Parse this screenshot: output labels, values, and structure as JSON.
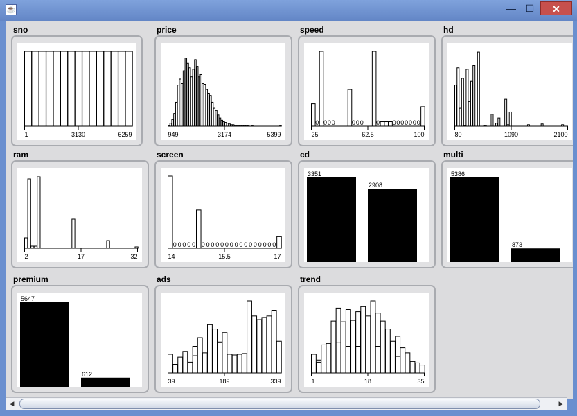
{
  "window": {
    "icon": "java-cup-icon",
    "icon_glyph": "☕",
    "minimize_glyph": "—",
    "maximize_glyph": "☐",
    "close_glyph": "✕"
  },
  "plots": [
    {
      "id": "sno",
      "title": "sno",
      "type": "histogram",
      "ticks": [
        "1",
        "3130",
        "6259"
      ],
      "values": [
        100,
        100,
        100,
        100,
        100,
        100,
        100,
        100,
        100,
        100,
        100,
        100,
        100,
        100,
        100
      ],
      "labels": [],
      "max": 100
    },
    {
      "id": "price",
      "title": "price",
      "type": "histogram",
      "ticks": [
        "949",
        "3174",
        "5399"
      ],
      "values": [
        1,
        4,
        9,
        17,
        32,
        55,
        63,
        57,
        74,
        91,
        84,
        78,
        66,
        76,
        89,
        80,
        66,
        69,
        57,
        56,
        49,
        44,
        41,
        32,
        24,
        21,
        15,
        11,
        8,
        6,
        5,
        4,
        3,
        2,
        2,
        1,
        1,
        1,
        1,
        1,
        1,
        1,
        1,
        0,
        1,
        0,
        0,
        0,
        0,
        0,
        0,
        0,
        0,
        0,
        0,
        0,
        0,
        0,
        0,
        1
      ],
      "labels": [],
      "max": 100
    },
    {
      "id": "speed",
      "title": "speed",
      "type": "histogram",
      "ticks": [
        "25",
        "62.5",
        "100"
      ],
      "values": [
        30,
        0,
        100,
        0,
        0,
        0,
        0,
        0,
        0,
        49,
        0,
        0,
        0,
        0,
        0,
        100,
        0,
        6,
        6,
        6,
        0,
        0,
        0,
        0,
        0,
        0,
        0,
        26
      ],
      "labels": [
        "",
        "0",
        "",
        "0",
        "0",
        "0",
        "",
        "",
        "",
        "",
        "0",
        "0",
        "0",
        "",
        "",
        "",
        "0",
        "",
        "",
        "",
        "0",
        "0",
        "0",
        "0",
        "0",
        "0",
        "0",
        ""
      ],
      "max": 100
    },
    {
      "id": "hd",
      "title": "hd",
      "type": "histogram",
      "ticks": [
        "80",
        "1090",
        "2100"
      ],
      "values": [
        55,
        78,
        24,
        64,
        1,
        76,
        33,
        60,
        81,
        0,
        99,
        0,
        0,
        1,
        0,
        0,
        16,
        0,
        4,
        11,
        0,
        0,
        36,
        2,
        19,
        0,
        0,
        0,
        0,
        0,
        0,
        0,
        2,
        0,
        0,
        0,
        0,
        0,
        3,
        0,
        0,
        0,
        0,
        0,
        0,
        0,
        0,
        2,
        0,
        0
      ],
      "labels": [],
      "max": 100
    },
    {
      "id": "ram",
      "title": "ram",
      "type": "histogram",
      "ticks": [
        "2",
        "17",
        "32"
      ],
      "values": [
        15,
        100,
        3,
        3,
        103,
        0,
        0,
        0,
        0,
        0,
        0,
        0,
        0,
        0,
        0,
        42,
        0,
        0,
        0,
        0,
        0,
        0,
        0,
        0,
        0,
        0,
        11,
        0,
        0,
        0,
        0,
        0,
        0,
        0,
        0,
        2
      ],
      "labels": [],
      "max": 104
    },
    {
      "id": "screen",
      "title": "screen",
      "type": "histogram",
      "ticks": [
        "14",
        "15.5",
        "17"
      ],
      "values": [
        100,
        0,
        0,
        0,
        0,
        0,
        53,
        0,
        0,
        0,
        0,
        0,
        0,
        0,
        0,
        0,
        0,
        0,
        0,
        0,
        0,
        0,
        0,
        16
      ],
      "labels": [
        "",
        "0",
        "0",
        "0",
        "0",
        "0",
        "",
        "0",
        "0",
        "0",
        "0",
        "0",
        "0",
        "0",
        "0",
        "0",
        "0",
        "0",
        "0",
        "0",
        "0",
        "0",
        "0",
        ""
      ],
      "max": 100
    },
    {
      "id": "cd",
      "title": "cd",
      "type": "barchart",
      "categories": [
        "",
        ""
      ],
      "values": [
        3351,
        2908
      ],
      "value_labels": [
        "3351",
        "2908"
      ],
      "max": 3351
    },
    {
      "id": "multi",
      "title": "multi",
      "type": "barchart",
      "categories": [
        "",
        ""
      ],
      "values": [
        5386,
        873
      ],
      "value_labels": [
        "5386",
        "873"
      ],
      "max": 5386
    },
    {
      "id": "premium",
      "title": "premium",
      "type": "barchart",
      "categories": [
        "",
        ""
      ],
      "values": [
        5647,
        612
      ],
      "value_labels": [
        "5647",
        "612"
      ],
      "max": 5647
    },
    {
      "id": "ads",
      "title": "ads",
      "type": "histogram",
      "ticks": [
        "39",
        "189",
        "339"
      ],
      "values": [
        26,
        12,
        22,
        30,
        15,
        37,
        49,
        28,
        67,
        61,
        43,
        56,
        26,
        25,
        26,
        27,
        100,
        79,
        74,
        77,
        79,
        87,
        44
      ],
      "inner": [
        null,
        null,
        null,
        null,
        null,
        24,
        null,
        null,
        null,
        null,
        null,
        null,
        null,
        null,
        null,
        null,
        null,
        null,
        null,
        null,
        null,
        null,
        null
      ],
      "labels": [],
      "max": 100
    },
    {
      "id": "trend",
      "title": "trend",
      "type": "histogram",
      "ticks": [
        "1",
        "18",
        "35"
      ],
      "values": [
        26,
        15,
        39,
        41,
        72,
        90,
        71,
        88,
        73,
        85,
        92,
        79,
        100,
        83,
        72,
        61,
        44,
        51,
        35,
        28,
        16,
        14,
        11
      ],
      "inner": [
        null,
        18,
        null,
        null,
        null,
        42,
        null,
        37,
        null,
        37,
        null,
        null,
        null,
        37,
        null,
        null,
        null,
        23,
        null,
        null,
        null,
        null,
        null
      ],
      "labels": [],
      "max": 100
    }
  ],
  "scrollbar": {
    "left_glyph": "◀",
    "right_glyph": "▶"
  }
}
